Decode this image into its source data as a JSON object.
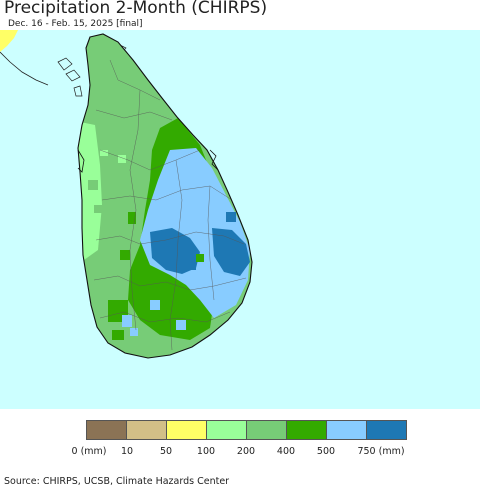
{
  "header": {
    "title": "Precipitation 2-Month (CHIRPS)",
    "subtitle": "Dec. 16 - Feb. 15, 2025 [final]"
  },
  "map": {
    "ocean_color": "#ccffff",
    "neighbor_land_color": "#ffff66"
  },
  "legend": {
    "colors": [
      "#8b7355",
      "#d2bf87",
      "#ffff66",
      "#99ff99",
      "#77cc77",
      "#33aa00",
      "#88ccff",
      "#1e78b4"
    ],
    "labels": [
      "0 (mm)",
      "10",
      "50",
      "100",
      "200",
      "400",
      "500",
      "750 (mm)"
    ]
  },
  "footer": {
    "source": "Source: CHIRPS, UCSB, Climate Hazards Center"
  }
}
